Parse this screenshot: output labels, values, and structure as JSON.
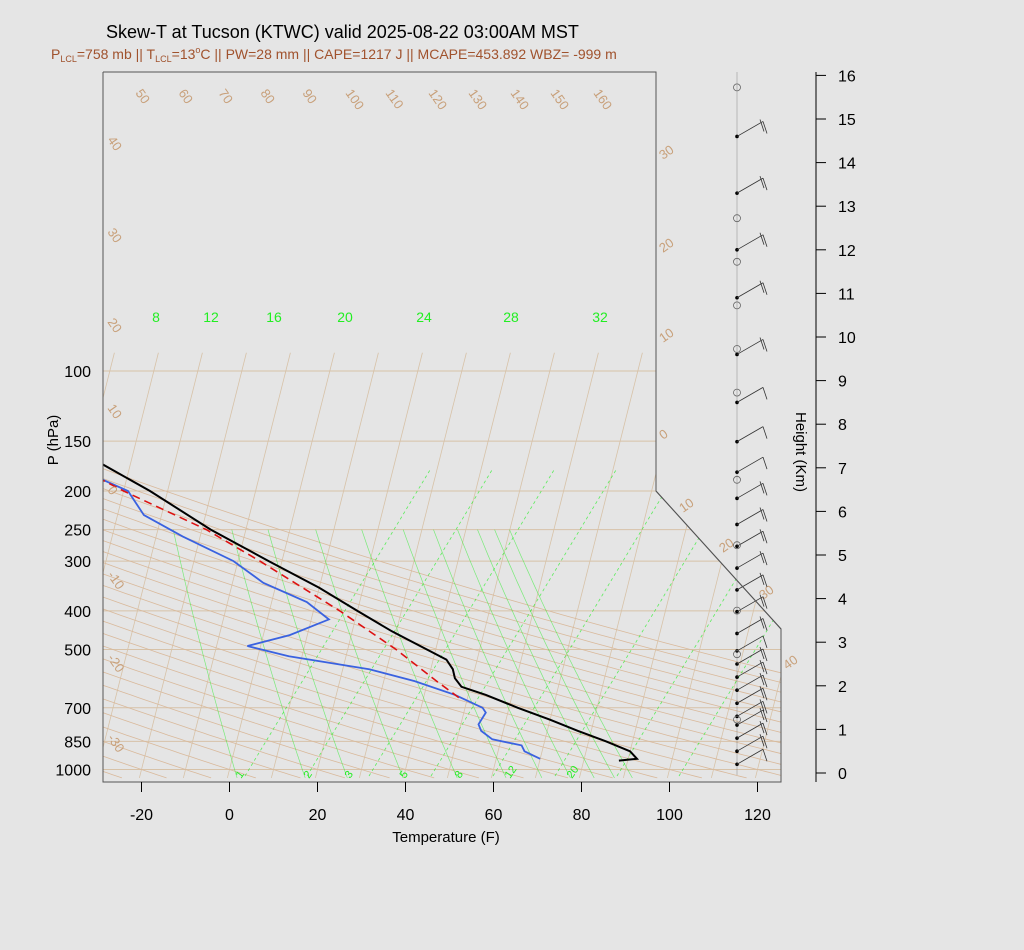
{
  "title": "Skew-T at Tucson (KTWC) valid 2025-08-22 03:00AM MST",
  "subtitle": {
    "p_lcl": "758 mb",
    "t_lcl": "13",
    "pw": "28 mm",
    "cape": "1217 J",
    "mcape": "453.892",
    "wbz": "-999 m"
  },
  "colors": {
    "temperature": "#000000",
    "dewpoint": "#3a62e0",
    "parcel": "#dd1111",
    "isotherm": "#d7c2a8",
    "adiabat": "#d9b99b",
    "mixing_ratio": "#22ee22",
    "subtitle": "#a0522d"
  },
  "chart_data": {
    "type": "line",
    "xlabel": "Temperature (F)",
    "ylabel": "P (hPa)",
    "x_ticks": [
      "-20",
      "0",
      "20",
      "40",
      "60",
      "80",
      "100",
      "120"
    ],
    "p_ticks": [
      "100",
      "150",
      "200",
      "250",
      "300",
      "400",
      "500",
      "700",
      "850",
      "1000"
    ],
    "height_label": "Height (Km)",
    "height_ticks": [
      "0",
      "1",
      "2",
      "3",
      "4",
      "5",
      "6",
      "7",
      "8",
      "9",
      "10",
      "11",
      "12",
      "13",
      "14",
      "15",
      "16"
    ],
    "adiabat_labels_top": [
      "50",
      "60",
      "70",
      "80",
      "90",
      "100",
      "110",
      "120",
      "130",
      "140",
      "150",
      "160"
    ],
    "adiabat_labels_left": [
      "40",
      "30",
      "20",
      "10",
      "0",
      "-10",
      "-20",
      "-30"
    ],
    "adiabat_labels_right": [
      "30",
      "20",
      "10",
      "0",
      "10",
      "20",
      "30",
      "40"
    ],
    "mixing_ratio_labels_top": [
      "8",
      "12",
      "16",
      "20",
      "24",
      "28",
      "32"
    ],
    "mixing_ratio_labels_bottom": [
      "1",
      "2",
      "3",
      "5",
      "8",
      "12",
      "20"
    ],
    "series": [
      {
        "points": [
          {
            "p": 950,
            "t": 88
          },
          {
            "p": 940,
            "t": 92
          },
          {
            "p": 900,
            "t": 90
          },
          {
            "p": 850,
            "t": 84
          },
          {
            "p": 800,
            "t": 77
          },
          {
            "p": 750,
            "t": 70
          },
          {
            "p": 700,
            "t": 62
          },
          {
            "p": 650,
            "t": 54
          },
          {
            "p": 620,
            "t": 48
          },
          {
            "p": 590,
            "t": 46
          },
          {
            "p": 560,
            "t": 45
          },
          {
            "p": 530,
            "t": 43
          },
          {
            "p": 500,
            "t": 38
          },
          {
            "p": 450,
            "t": 29
          },
          {
            "p": 400,
            "t": 20
          },
          {
            "p": 350,
            "t": 10
          },
          {
            "p": 300,
            "t": -3
          },
          {
            "p": 250,
            "t": -18
          },
          {
            "p": 200,
            "t": -34
          },
          {
            "p": 170,
            "t": -47
          },
          {
            "p": 160,
            "t": -56
          },
          {
            "p": 130,
            "t": -73
          },
          {
            "p": 100,
            "t": -86
          }
        ]
      },
      {
        "points": [
          {
            "p": 940,
            "t": 70
          },
          {
            "p": 900,
            "t": 66
          },
          {
            "p": 870,
            "t": 65
          },
          {
            "p": 840,
            "t": 58
          },
          {
            "p": 800,
            "t": 55
          },
          {
            "p": 770,
            "t": 54
          },
          {
            "p": 720,
            "t": 55
          },
          {
            "p": 700,
            "t": 54
          },
          {
            "p": 650,
            "t": 47
          },
          {
            "p": 600,
            "t": 37
          },
          {
            "p": 560,
            "t": 26
          },
          {
            "p": 520,
            "t": 7
          },
          {
            "p": 490,
            "t": -3
          },
          {
            "p": 460,
            "t": 6
          },
          {
            "p": 420,
            "t": 14
          },
          {
            "p": 380,
            "t": 8
          },
          {
            "p": 340,
            "t": -3
          },
          {
            "p": 300,
            "t": -11
          },
          {
            "p": 260,
            "t": -24
          },
          {
            "p": 230,
            "t": -34
          },
          {
            "p": 200,
            "t": -39
          },
          {
            "p": 170,
            "t": -55
          },
          {
            "p": 140,
            "t": -71
          },
          {
            "p": 100,
            "t": -96
          }
        ]
      },
      {
        "points": [
          {
            "p": 660,
            "t": 48
          },
          {
            "p": 600,
            "t": 42
          },
          {
            "p": 500,
            "t": 31
          },
          {
            "p": 400,
            "t": 16
          },
          {
            "p": 300,
            "t": -5
          },
          {
            "p": 250,
            "t": -19
          },
          {
            "p": 200,
            "t": -40
          },
          {
            "p": 170,
            "t": -54
          }
        ]
      }
    ],
    "wind_barbs": [
      {
        "h": 0.2,
        "spd": 10,
        "dir": 340
      },
      {
        "h": 0.5,
        "spd": 15,
        "dir": 330
      },
      {
        "h": 0.8,
        "spd": 15,
        "dir": 320
      },
      {
        "h": 1.1,
        "spd": 15,
        "dir": 315
      },
      {
        "h": 1.3,
        "spd": 20,
        "dir": 300
      },
      {
        "h": 1.6,
        "spd": 15,
        "dir": 300
      },
      {
        "h": 1.9,
        "spd": 15,
        "dir": 305
      },
      {
        "h": 2.2,
        "spd": 15,
        "dir": 310
      },
      {
        "h": 2.5,
        "spd": 15,
        "dir": 315
      },
      {
        "h": 2.8,
        "spd": 10,
        "dir": 320
      },
      {
        "h": 3.2,
        "spd": 15,
        "dir": 300
      },
      {
        "h": 3.7,
        "spd": 15,
        "dir": 300
      },
      {
        "h": 4.2,
        "spd": 15,
        "dir": 295
      },
      {
        "h": 4.7,
        "spd": 15,
        "dir": 300
      },
      {
        "h": 5.2,
        "spd": 15,
        "dir": 305
      },
      {
        "h": 5.7,
        "spd": 15,
        "dir": 300
      },
      {
        "h": 6.3,
        "spd": 15,
        "dir": 300
      },
      {
        "h": 6.9,
        "spd": 10,
        "dir": 315
      },
      {
        "h": 7.6,
        "spd": 10,
        "dir": 330
      },
      {
        "h": 8.5,
        "spd": 10,
        "dir": 330
      },
      {
        "h": 9.6,
        "spd": 15,
        "dir": 320
      },
      {
        "h": 10.9,
        "spd": 15,
        "dir": 330
      },
      {
        "h": 12.0,
        "spd": 20,
        "dir": 330
      },
      {
        "h": 13.3,
        "spd": 15,
        "dir": 330
      },
      {
        "h": 14.6,
        "spd": 15,
        "dir": 320
      }
    ]
  }
}
